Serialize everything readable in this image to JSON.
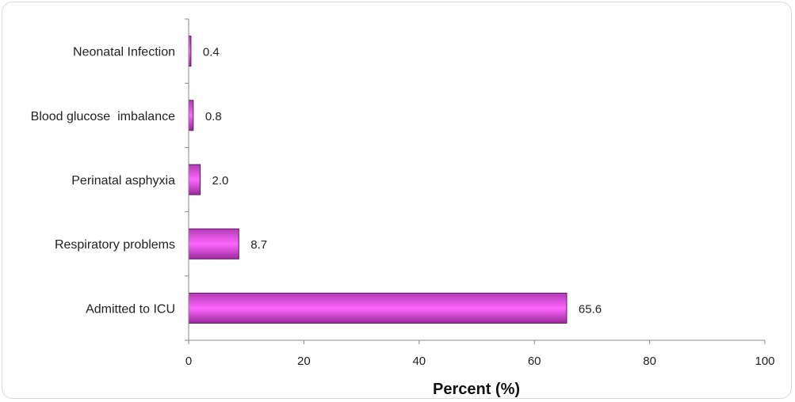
{
  "chart_data": {
    "type": "bar",
    "orientation": "horizontal",
    "categories": [
      "Neonatal Infection",
      "Blood glucose  imbalance",
      "Perinatal asphyxia",
      "Respiratory problems",
      "Admitted to ICU"
    ],
    "values": [
      0.4,
      0.8,
      2.0,
      8.7,
      65.6
    ],
    "data_labels": [
      "0.4",
      "0.8",
      "2.0",
      "8.7",
      "65.6"
    ],
    "xlabel": "Percent (%)",
    "ylabel": "",
    "xlim": [
      0,
      100
    ],
    "x_ticks": [
      0,
      20,
      40,
      60,
      80,
      100
    ],
    "grid": false,
    "bar_color_light": "#ff55ff",
    "bar_color_dark": "#7a1a7a",
    "bar_edge_color": "#5a1660",
    "axis_color": "#888888"
  }
}
